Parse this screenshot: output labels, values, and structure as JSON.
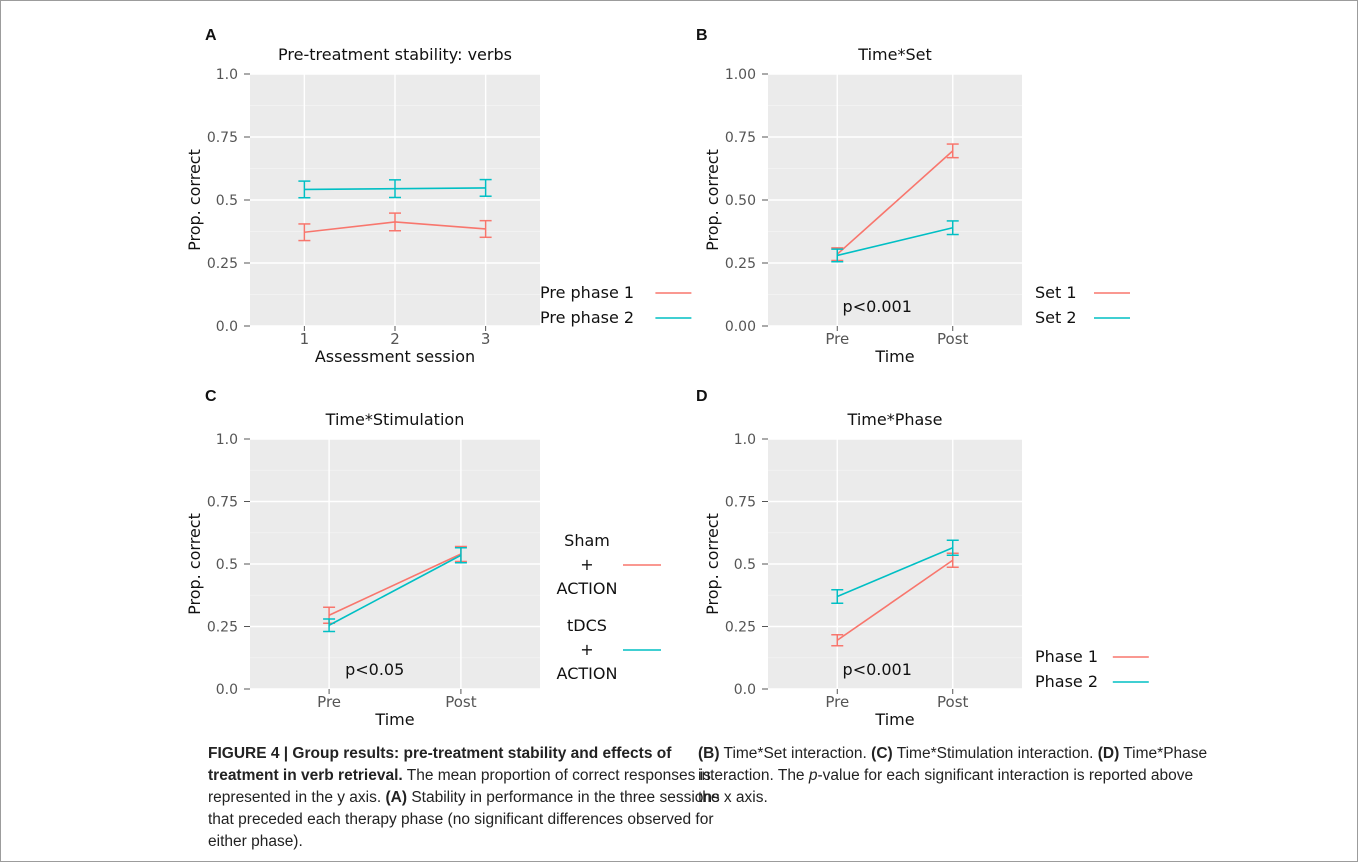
{
  "colors": {
    "red": "#f8766d",
    "teal": "#00bfc4",
    "panel_bg": "#ebebeb",
    "grid": "#ffffff"
  },
  "chart_data": [
    {
      "panel_letter": "A",
      "type": "line",
      "title": "Pre-treatment stability: verbs",
      "xlabel": "Assessment session",
      "ylabel": "Prop. correct",
      "categories": [
        "1",
        "2",
        "3"
      ],
      "ylim": [
        0,
        1
      ],
      "yticks": [
        "0.0",
        "0.25",
        "0.5",
        "0.75",
        "1.0"
      ],
      "grid": true,
      "legend_position": "right",
      "series": [
        {
          "name": "Pre phase 1",
          "color": "#f8766d",
          "values": [
            0.372,
            0.413,
            0.385
          ],
          "errors": [
            0.033,
            0.035,
            0.033
          ]
        },
        {
          "name": "Pre phase 2",
          "color": "#00bfc4",
          "values": [
            0.542,
            0.545,
            0.548
          ],
          "errors": [
            0.033,
            0.035,
            0.033
          ]
        }
      ],
      "annotation": ""
    },
    {
      "panel_letter": "B",
      "type": "line",
      "title": "Time*Set",
      "xlabel": "Time",
      "ylabel": "Prop. correct",
      "categories": [
        "Pre",
        "Post"
      ],
      "ylim": [
        0,
        1
      ],
      "yticks": [
        "0.00",
        "0.25",
        "0.50",
        "0.75",
        "1.00"
      ],
      "grid": true,
      "legend_position": "right",
      "series": [
        {
          "name": "Set 1",
          "color": "#f8766d",
          "values": [
            0.285,
            0.695
          ],
          "errors": [
            0.025,
            0.027
          ]
        },
        {
          "name": "Set 2",
          "color": "#00bfc4",
          "values": [
            0.28,
            0.39
          ],
          "errors": [
            0.025,
            0.027
          ]
        }
      ],
      "annotation": "p<0.001"
    },
    {
      "panel_letter": "C",
      "type": "line",
      "title": "Time*Stimulation",
      "xlabel": "Time",
      "ylabel": "Prop. correct",
      "categories": [
        "Pre",
        "Post"
      ],
      "ylim": [
        0,
        1
      ],
      "yticks": [
        "0.0",
        "0.25",
        "0.5",
        "0.75",
        "1.0"
      ],
      "grid": true,
      "legend_position": "right",
      "series": [
        {
          "name": "Sham\n+\nACTION",
          "color": "#f8766d",
          "values": [
            0.295,
            0.54
          ],
          "errors": [
            0.032,
            0.03
          ]
        },
        {
          "name": "tDCS\n+\nACTION",
          "color": "#00bfc4",
          "values": [
            0.255,
            0.535
          ],
          "errors": [
            0.025,
            0.03
          ]
        }
      ],
      "annotation": "p<0.05"
    },
    {
      "panel_letter": "D",
      "type": "line",
      "title": "Time*Phase",
      "xlabel": "Time",
      "ylabel": "Prop. correct",
      "categories": [
        "Pre",
        "Post"
      ],
      "ylim": [
        0,
        1
      ],
      "yticks": [
        "0.0",
        "0.25",
        "0.5",
        "0.75",
        "1.0"
      ],
      "grid": true,
      "legend_position": "right",
      "series": [
        {
          "name": "Phase 1",
          "color": "#f8766d",
          "values": [
            0.195,
            0.515
          ],
          "errors": [
            0.022,
            0.028
          ]
        },
        {
          "name": "Phase 2",
          "color": "#00bfc4",
          "values": [
            0.37,
            0.565
          ],
          "errors": [
            0.027,
            0.03
          ]
        }
      ],
      "annotation": "p<0.001"
    }
  ],
  "caption": {
    "figure_label": "FIGURE 4 | Group results: pre-treatment stability and effects of treatment in verb retrieval.",
    "lines": [
      " The mean proportion of correct responses is represented in the y axis. ",
      "(A)",
      " Stability in performance in the three sessions that preceded each therapy phase (no significant differences observed for either phase). ",
      "(B)",
      " Time*Set interaction. ",
      "(C)",
      " Time*Stimulation interaction. ",
      "(D)",
      " Time*Phase interaction. The ",
      "p",
      "-value for each significant interaction is reported above the x axis."
    ]
  }
}
